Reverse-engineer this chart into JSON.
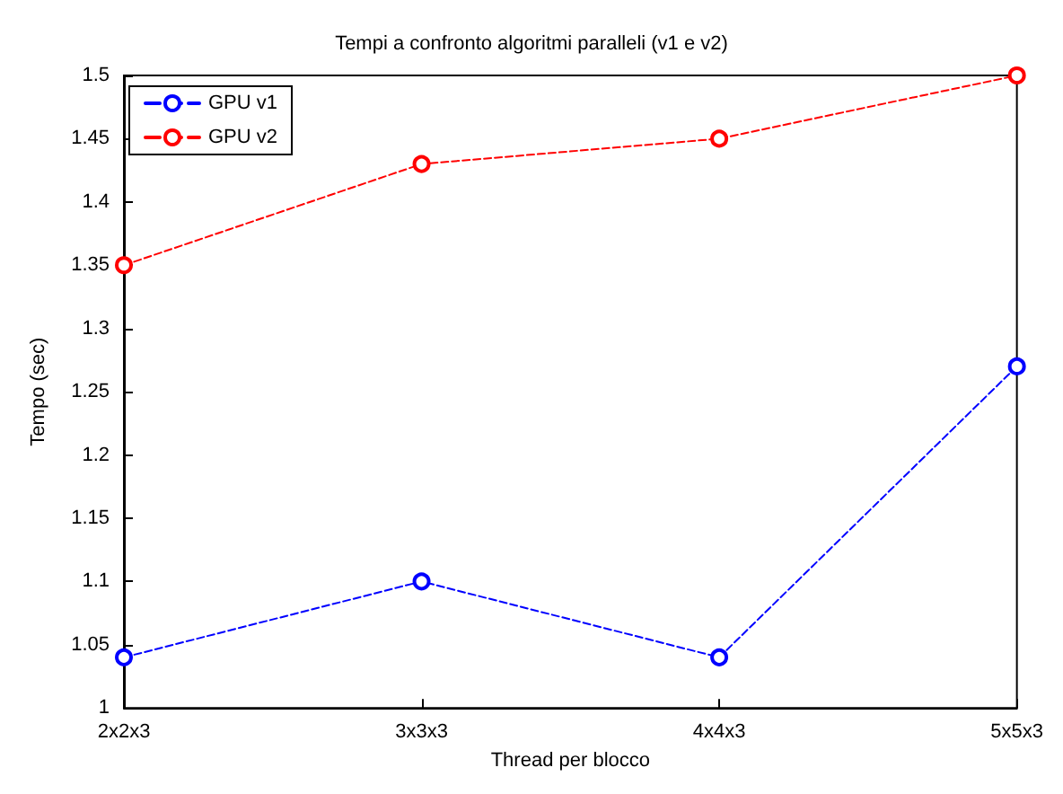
{
  "chart_data": {
    "type": "line",
    "title": "Tempi a confronto algoritmi paralleli (v1 e v2)",
    "xlabel": "Thread per blocco",
    "ylabel": "Tempo (sec)",
    "categories": [
      "2x2x3",
      "3x3x3",
      "4x4x3",
      "5x5x3"
    ],
    "series": [
      {
        "name": "GPU v1",
        "color": "#0000ff",
        "values": [
          1.04,
          1.1,
          1.04,
          1.27
        ]
      },
      {
        "name": "GPU v2",
        "color": "#ff0000",
        "values": [
          1.35,
          1.43,
          1.45,
          1.5
        ]
      }
    ],
    "ylim": [
      1,
      1.5
    ],
    "yticks": [
      1,
      1.05,
      1.1,
      1.15,
      1.2,
      1.25,
      1.3,
      1.35,
      1.4,
      1.45,
      1.5
    ],
    "grid": false,
    "legend": "top left",
    "marker": "circle",
    "line_style": "dashed"
  }
}
